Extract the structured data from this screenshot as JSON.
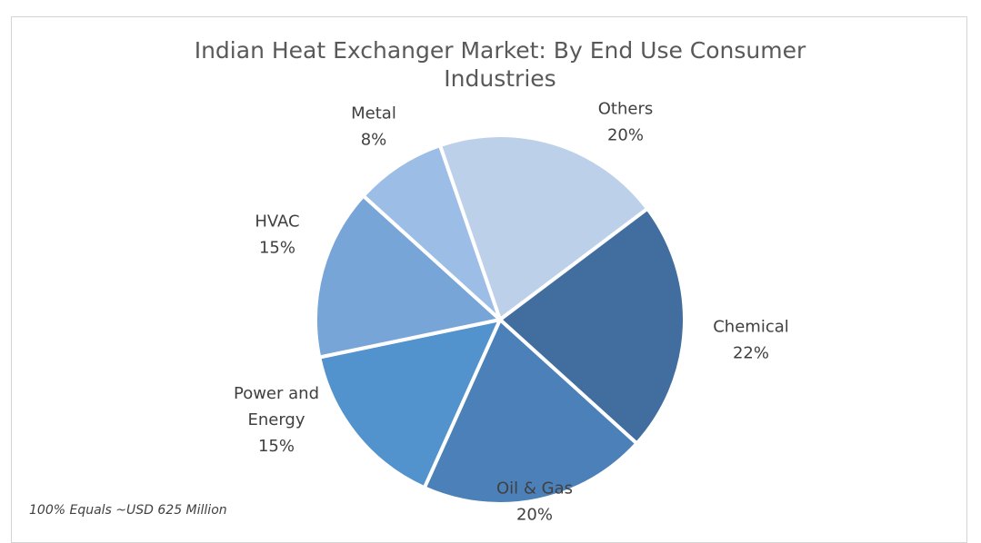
{
  "chart_data": {
    "type": "pie",
    "title_lines": [
      "Indian Heat Exchanger Market: By End Use Consumer",
      "Industries"
    ],
    "slices": [
      {
        "name": "Others",
        "label_lines": [
          "Others"
        ],
        "value": 20,
        "value_label": "20%",
        "color": "#bdd0ea"
      },
      {
        "name": "Chemical",
        "label_lines": [
          "Chemical"
        ],
        "value": 22,
        "value_label": "22%",
        "color": "#416e9f"
      },
      {
        "name": "Oil & Gas",
        "label_lines": [
          "Oil & Gas"
        ],
        "value": 20,
        "value_label": "20%",
        "color": "#4b80b9"
      },
      {
        "name": "Power and Energy",
        "label_lines": [
          "Power and",
          "Energy"
        ],
        "value": 15,
        "value_label": "15%",
        "color": "#5292cd"
      },
      {
        "name": "HVAC",
        "label_lines": [
          "HVAC"
        ],
        "value": 15,
        "value_label": "15%",
        "color": "#78a5d8"
      },
      {
        "name": "Metal",
        "label_lines": [
          "Metal"
        ],
        "value": 8,
        "value_label": "8%",
        "color": "#9cbde5"
      }
    ],
    "note": "100% Equals ~USD 625 Million"
  }
}
